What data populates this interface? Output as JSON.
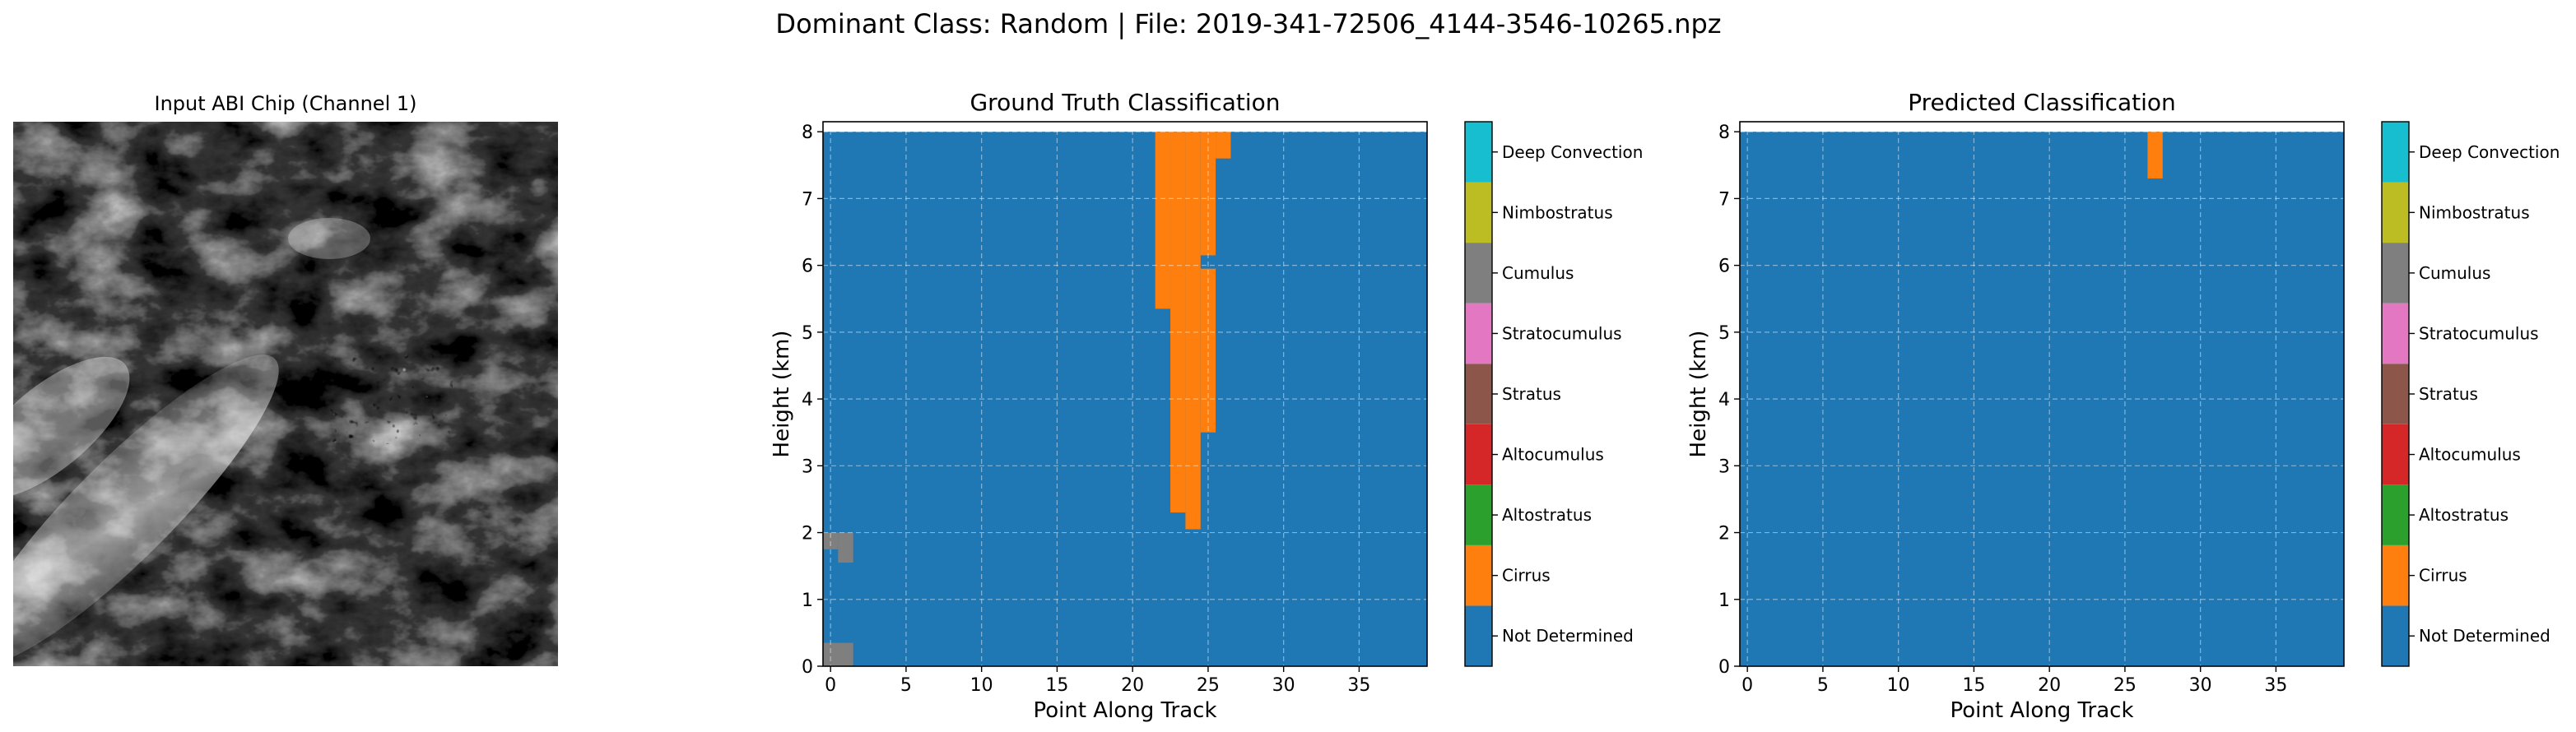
{
  "figure": {
    "suptitle": "Dominant Class: Random | File: 2019-341-72506_4144-3546-10265.npz"
  },
  "classes": [
    {
      "name": "Not Determined",
      "color": "#1f77b4"
    },
    {
      "name": "Cirrus",
      "color": "#ff7f0e"
    },
    {
      "name": "Altostratus",
      "color": "#2ca02c"
    },
    {
      "name": "Altocumulus",
      "color": "#d62728"
    },
    {
      "name": "Stratus",
      "color": "#8c564b"
    },
    {
      "name": "Stratocumulus",
      "color": "#e377c2"
    },
    {
      "name": "Cumulus",
      "color": "#7f7f7f"
    },
    {
      "name": "Nimbostratus",
      "color": "#bcbd22"
    },
    {
      "name": "Deep Convection",
      "color": "#17becf"
    }
  ],
  "chart_data": [
    {
      "type": "image",
      "title": "Input ABI Chip (Channel 1)",
      "colormap": "gray"
    },
    {
      "type": "heatmap",
      "title": "Ground Truth Classification",
      "xlabel": "Point Along Track",
      "ylabel": "Height (km)",
      "xlim": [
        -0.5,
        39.5
      ],
      "ylim": [
        0,
        8.15
      ],
      "xticks": [
        0,
        5,
        10,
        15,
        20,
        25,
        30,
        35
      ],
      "yticks": [
        0,
        1,
        2,
        3,
        4,
        5,
        6,
        7,
        8
      ],
      "grid": true,
      "background_class": "Not Determined",
      "cells": [
        {
          "class": "Cirrus",
          "x": [
            21.5,
            22.5
          ],
          "y": [
            5.35,
            8.15
          ]
        },
        {
          "class": "Cirrus",
          "x": [
            22.5,
            23.5
          ],
          "y": [
            2.3,
            8.15
          ]
        },
        {
          "class": "Cirrus",
          "x": [
            23.5,
            24.5
          ],
          "y": [
            2.05,
            8.15
          ]
        },
        {
          "class": "Cirrus",
          "x": [
            24.5,
            25.5
          ],
          "y": [
            3.5,
            5.95
          ]
        },
        {
          "class": "Cirrus",
          "x": [
            24.5,
            25.5
          ],
          "y": [
            6.15,
            8.15
          ]
        },
        {
          "class": "Cirrus",
          "x": [
            25.5,
            26.5
          ],
          "y": [
            7.6,
            8.15
          ]
        },
        {
          "class": "Cumulus",
          "x": [
            -0.5,
            0.5
          ],
          "y": [
            1.75,
            2.0
          ]
        },
        {
          "class": "Cumulus",
          "x": [
            0.5,
            1.5
          ],
          "y": [
            1.55,
            2.0
          ]
        },
        {
          "class": "Cumulus",
          "x": [
            -0.5,
            1.5
          ],
          "y": [
            0.0,
            0.35
          ]
        }
      ],
      "colorbar_labels": [
        "Not Determined",
        "Cirrus",
        "Altostratus",
        "Altocumulus",
        "Stratus",
        "Stratocumulus",
        "Cumulus",
        "Nimbostratus",
        "Deep Convection"
      ]
    },
    {
      "type": "heatmap",
      "title": "Predicted Classification",
      "xlabel": "Point Along Track",
      "ylabel": "Height (km)",
      "xlim": [
        -0.5,
        39.5
      ],
      "ylim": [
        0,
        8.15
      ],
      "xticks": [
        0,
        5,
        10,
        15,
        20,
        25,
        30,
        35
      ],
      "yticks": [
        0,
        1,
        2,
        3,
        4,
        5,
        6,
        7,
        8
      ],
      "grid": true,
      "background_class": "Not Determined",
      "cells": [
        {
          "class": "Cirrus",
          "x": [
            26.5,
            27.5
          ],
          "y": [
            7.3,
            8.15
          ]
        }
      ],
      "colorbar_labels": [
        "Not Determined",
        "Cirrus",
        "Altostratus",
        "Altocumulus",
        "Stratus",
        "Stratocumulus",
        "Cumulus",
        "Nimbostratus",
        "Deep Convection"
      ]
    }
  ]
}
